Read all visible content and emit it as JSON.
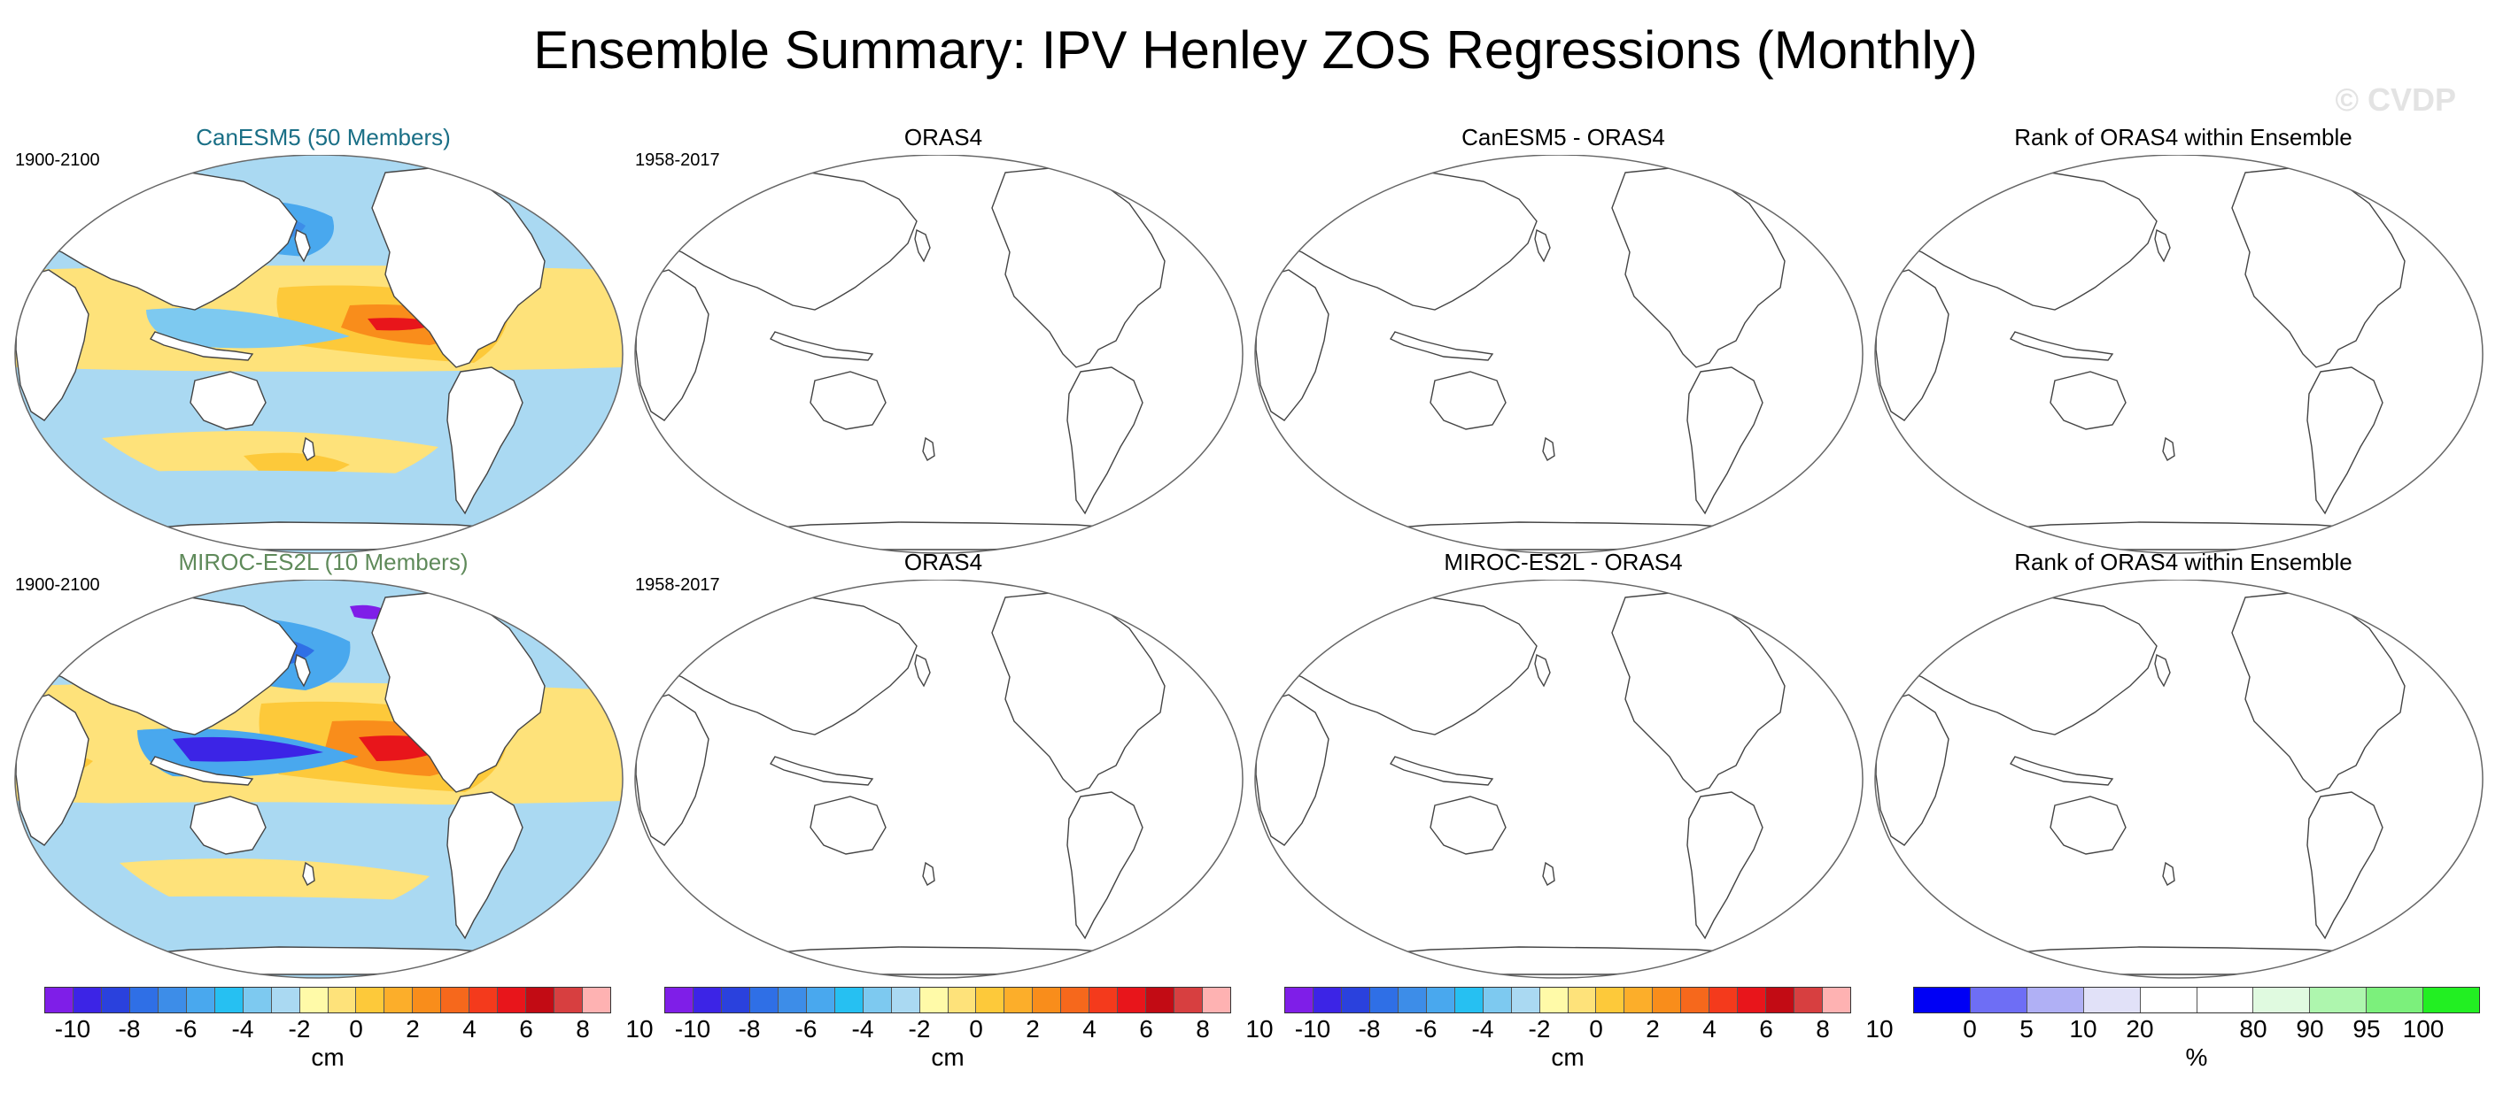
{
  "figure": {
    "title": "Ensemble Summary: IPV Henley ZOS Regressions (Monthly)",
    "watermark": "© CVDP"
  },
  "rows": [
    {
      "panels": [
        {
          "title": "CanESM5 (50 Members)",
          "title_color": "#1a6f86",
          "period": "1900-2100",
          "filled": true
        },
        {
          "title": "ORAS4",
          "title_color": "#000000",
          "period": "1958-2017",
          "filled": false
        },
        {
          "title": "CanESM5 - ORAS4",
          "title_color": "#000000",
          "period": "",
          "filled": false
        },
        {
          "title": "Rank of ORAS4 within Ensemble",
          "title_color": "#000000",
          "period": "",
          "filled": false
        }
      ]
    },
    {
      "panels": [
        {
          "title": "MIROC-ES2L (10 Members)",
          "title_color": "#5f8a5a",
          "period": "1900-2100",
          "filled": true
        },
        {
          "title": "ORAS4",
          "title_color": "#000000",
          "period": "1958-2017",
          "filled": false
        },
        {
          "title": "MIROC-ES2L - ORAS4",
          "title_color": "#000000",
          "period": "",
          "filled": false
        },
        {
          "title": "Rank of ORAS4 within Ensemble",
          "title_color": "#000000",
          "period": "",
          "filled": false
        }
      ]
    }
  ],
  "colorbars": {
    "zos": {
      "colors": [
        "#7f1ee8",
        "#3c24e6",
        "#2a41dd",
        "#2f6fe6",
        "#3d8de8",
        "#49a8ee",
        "#26c0f2",
        "#7dc9f0",
        "#aad9f2",
        "#fffaa8",
        "#fee27a",
        "#fdc93a",
        "#fcae2a",
        "#f98d1b",
        "#f6681c",
        "#f43a1c",
        "#e8151b",
        "#c20b14",
        "#d73f40",
        "#feb2b2"
      ],
      "labels": [
        "-10",
        "-8",
        "-6",
        "-4",
        "-2",
        "0",
        "2",
        "4",
        "6",
        "8",
        "10"
      ],
      "units": "cm"
    },
    "rank": {
      "colors": [
        "#0000f5",
        "#6e6ef5",
        "#b0b0f5",
        "#e1e1f8",
        "#ffffff",
        "#ffffff",
        "#e0fae0",
        "#aef6ae",
        "#7cf07c",
        "#22ef22"
      ],
      "labels": [
        "0",
        "5",
        "10",
        "20",
        "80",
        "90",
        "95",
        "100"
      ],
      "units": "%"
    }
  }
}
